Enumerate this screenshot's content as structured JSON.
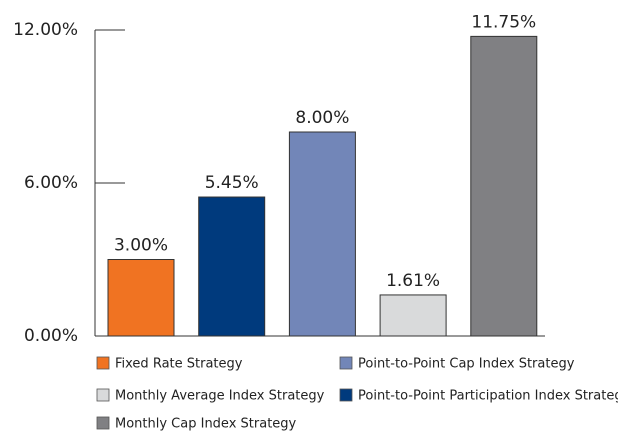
{
  "chart_data": {
    "type": "bar",
    "series": [
      {
        "name": "Fixed Rate Strategy",
        "color": "#f07322",
        "values": [
          3.0
        ],
        "value_labels": [
          "3.00%"
        ]
      },
      {
        "name": "Point-to-Point Participation Index Strategy",
        "color": "#003a7d",
        "values": [
          5.45
        ],
        "value_labels": [
          "5.45%"
        ]
      },
      {
        "name": "Point-to-Point Cap Index Strategy",
        "color": "#7286b8",
        "values": [
          8.0
        ],
        "value_labels": [
          "8.00%"
        ]
      },
      {
        "name": "Monthly Average Index Strategy",
        "color": "#d9dadb",
        "values": [
          1.61
        ],
        "value_labels": [
          "1.61%"
        ]
      },
      {
        "name": "Monthly Cap Index Strategy",
        "color": "#808083",
        "values": [
          11.75
        ],
        "value_labels": [
          "11.75%"
        ]
      }
    ],
    "ylim": [
      0,
      12
    ],
    "yticks": [
      {
        "value": 0,
        "label": "0.00%"
      },
      {
        "value": 6,
        "label": "6.00%"
      },
      {
        "value": 12,
        "label": "12.00%"
      }
    ]
  }
}
